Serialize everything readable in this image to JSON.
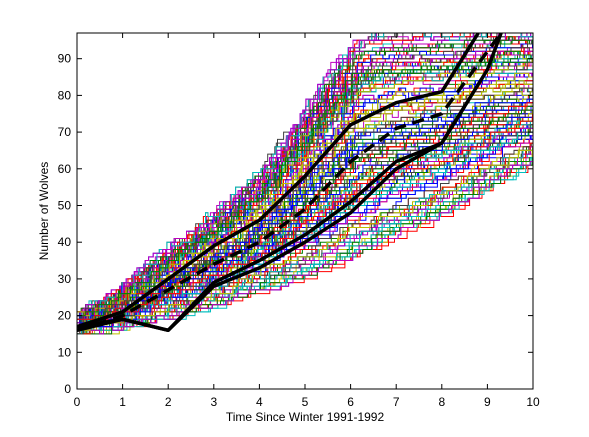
{
  "chart_data": {
    "type": "line",
    "title": "",
    "xlabel": "Time Since Winter 1991-1992",
    "ylabel": "Number of Wolves",
    "xlim": [
      0,
      10
    ],
    "ylim": [
      0,
      97
    ],
    "xticks": [
      0,
      1,
      2,
      3,
      4,
      5,
      6,
      7,
      8,
      9,
      10
    ],
    "yticks": [
      0,
      10,
      20,
      30,
      40,
      50,
      60,
      70,
      80,
      90
    ],
    "grid": false,
    "legend": "none",
    "simulation_band": {
      "description_visible": false,
      "x": [
        0,
        0.5,
        1,
        2,
        3,
        4,
        5,
        6,
        7,
        8,
        9,
        10
      ],
      "lower": [
        15,
        16,
        17,
        20,
        23,
        27,
        31,
        36,
        42,
        48,
        56,
        62
      ],
      "upper": [
        22,
        25,
        30,
        40,
        50,
        62,
        80,
        97,
        97,
        97,
        97,
        97
      ],
      "path_count": 220,
      "colors": [
        "#0000ff",
        "#008000",
        "#ff0000",
        "#00bfbf",
        "#bf00bf",
        "#bfbf00",
        "#404040"
      ]
    },
    "series": [
      {
        "role": "observed",
        "style": "solid",
        "color": "#000000",
        "x": [
          0,
          1,
          2,
          3,
          4,
          5,
          6,
          7,
          8,
          9,
          9.3
        ],
        "values": [
          16,
          19,
          16,
          29,
          35,
          42,
          51,
          62,
          67,
          87,
          97
        ]
      },
      {
        "role": "upper-bound",
        "style": "solid",
        "color": "#000000",
        "x": [
          0,
          1,
          2,
          3,
          4,
          5,
          6,
          7,
          8,
          8.8
        ],
        "values": [
          17,
          21,
          30,
          39,
          46,
          58,
          72,
          78,
          81,
          97
        ]
      },
      {
        "role": "mean",
        "style": "dashed",
        "color": "#000000",
        "x": [
          0,
          1,
          2,
          3,
          4,
          5,
          6,
          7,
          8,
          9,
          9.3
        ],
        "values": [
          16,
          20,
          27,
          34,
          40,
          49,
          62,
          71,
          75,
          92,
          97
        ]
      },
      {
        "role": "lower-bound",
        "style": "solid",
        "color": "#000000",
        "x": [
          0,
          1,
          2,
          3,
          4,
          5,
          6,
          7,
          8,
          8.5
        ],
        "values": [
          17,
          19,
          16,
          28,
          33,
          40,
          48,
          60,
          67,
          77
        ]
      }
    ]
  }
}
